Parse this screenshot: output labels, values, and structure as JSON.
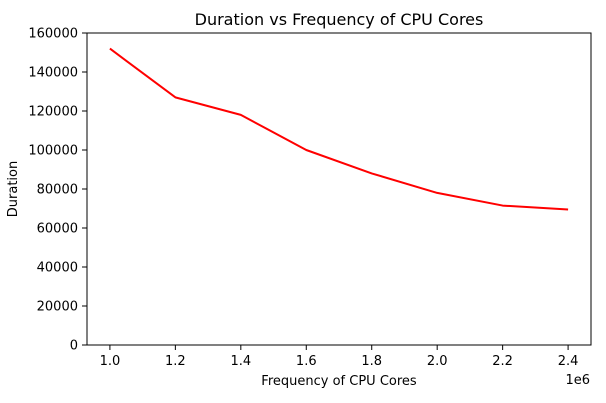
{
  "chart_data": {
    "type": "line",
    "title": "Duration vs Frequency of CPU Cores",
    "xlabel": "Frequency of CPU Cores",
    "ylabel": "Duration",
    "x_offset_label": "1e6",
    "x": [
      1000000,
      1200000,
      1400000,
      1600000,
      1800000,
      2000000,
      2200000,
      2400000
    ],
    "x_tick_values": [
      1000000,
      1200000,
      1400000,
      1600000,
      1800000,
      2000000,
      2200000,
      2400000
    ],
    "x_tick_labels": [
      "1.0",
      "1.2",
      "1.4",
      "1.6",
      "1.8",
      "2.0",
      "2.2",
      "2.4"
    ],
    "y_tick_values": [
      0,
      20000,
      40000,
      60000,
      80000,
      100000,
      120000,
      140000,
      160000
    ],
    "y_tick_labels": [
      "0",
      "20000",
      "40000",
      "60000",
      "80000",
      "100000",
      "120000",
      "140000",
      "160000"
    ],
    "xlim": [
      930000,
      2470000
    ],
    "ylim": [
      0,
      160000
    ],
    "grid": false,
    "series": [
      {
        "values": [
          152000,
          127000,
          118000,
          100000,
          88000,
          78000,
          71500,
          69500
        ],
        "color": "#ff0000"
      }
    ]
  }
}
